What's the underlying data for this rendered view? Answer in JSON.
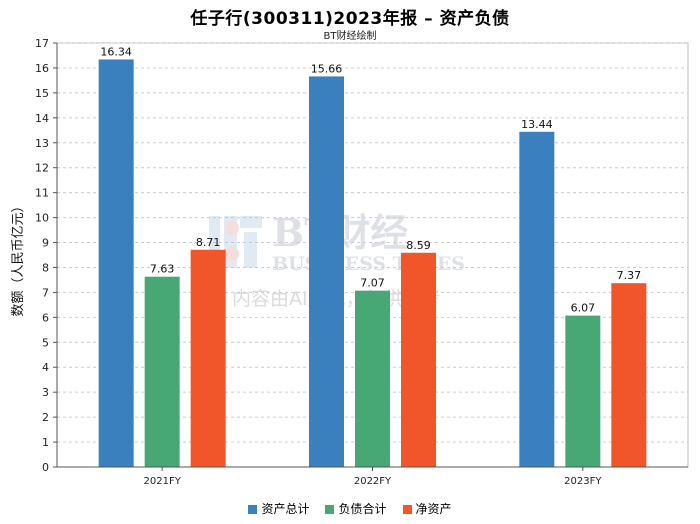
{
  "chart_data": {
    "type": "bar",
    "title": "任子行(300311)2023年报 – 资产负债",
    "subtitle": "BT财经绘制",
    "xlabel": "",
    "ylabel": "数额（人民币亿元）",
    "ylim": [
      0,
      17
    ],
    "yticks": [
      0,
      1,
      2,
      3,
      4,
      5,
      6,
      7,
      8,
      9,
      10,
      11,
      12,
      13,
      14,
      15,
      16,
      17
    ],
    "grid": true,
    "legend_position": "bottom",
    "categories": [
      "2021FY",
      "2022FY",
      "2023FY"
    ],
    "series": [
      {
        "name": "资产总计",
        "color": "#3a80be",
        "values": [
          16.34,
          15.66,
          13.44
        ]
      },
      {
        "name": "负债合计",
        "color": "#48a875",
        "values": [
          7.63,
          7.07,
          6.07
        ]
      },
      {
        "name": "净资产",
        "color": "#f0562a",
        "values": [
          8.71,
          8.59,
          7.37
        ]
      }
    ]
  },
  "watermark": {
    "brand": "BT财经",
    "brand_en": "BUSINESS TIMES",
    "notice": "内容由AI生成，仅供参考"
  }
}
